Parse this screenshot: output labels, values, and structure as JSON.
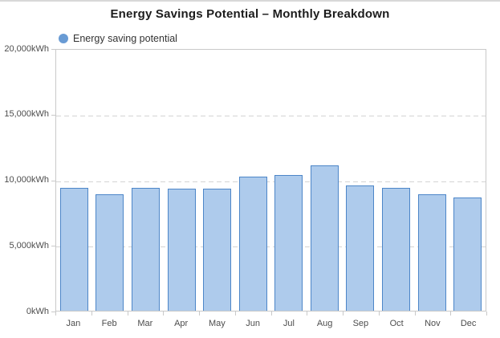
{
  "page": {
    "background": "#ffffff",
    "top_strip_color": "#d8d8d8"
  },
  "chart_data": {
    "type": "bar",
    "title": "Energy Savings Potential – Monthly Breakdown",
    "legend": [
      {
        "label": "Energy saving potential",
        "marker": "circle-icon",
        "color": "#699bd4"
      }
    ],
    "legend_position": "top-left",
    "categories": [
      "Jan",
      "Feb",
      "Mar",
      "Apr",
      "May",
      "Jun",
      "Jul",
      "Aug",
      "Sep",
      "Oct",
      "Nov",
      "Dec"
    ],
    "series": [
      {
        "name": "Energy saving potential",
        "values": [
          9440,
          8930,
          9440,
          9380,
          9370,
          10280,
          10410,
          11130,
          9600,
          9400,
          8930,
          8690
        ]
      }
    ],
    "unit": "kWh",
    "xlabel": "",
    "ylabel": "",
    "ylim": [
      0,
      20000
    ],
    "y_ticks": [
      {
        "value": 20000,
        "label": "20,000kWh"
      },
      {
        "value": 15000,
        "label": "15,000kWh"
      },
      {
        "value": 10000,
        "label": "10,000kWh"
      },
      {
        "value": 5000,
        "label": "5,000kWh"
      },
      {
        "value": 0,
        "label": "0kWh"
      }
    ],
    "grid": "horizontal-dashed",
    "colors": {
      "bar_fill": "#aecbec",
      "bar_border": "#4d86c8",
      "axis_line": "#c9c9c9",
      "grid_line": "#d4d4d4",
      "title_text": "#1c1c1c",
      "axis_text": "#4d4d4d",
      "legend_text": "#333333"
    }
  }
}
